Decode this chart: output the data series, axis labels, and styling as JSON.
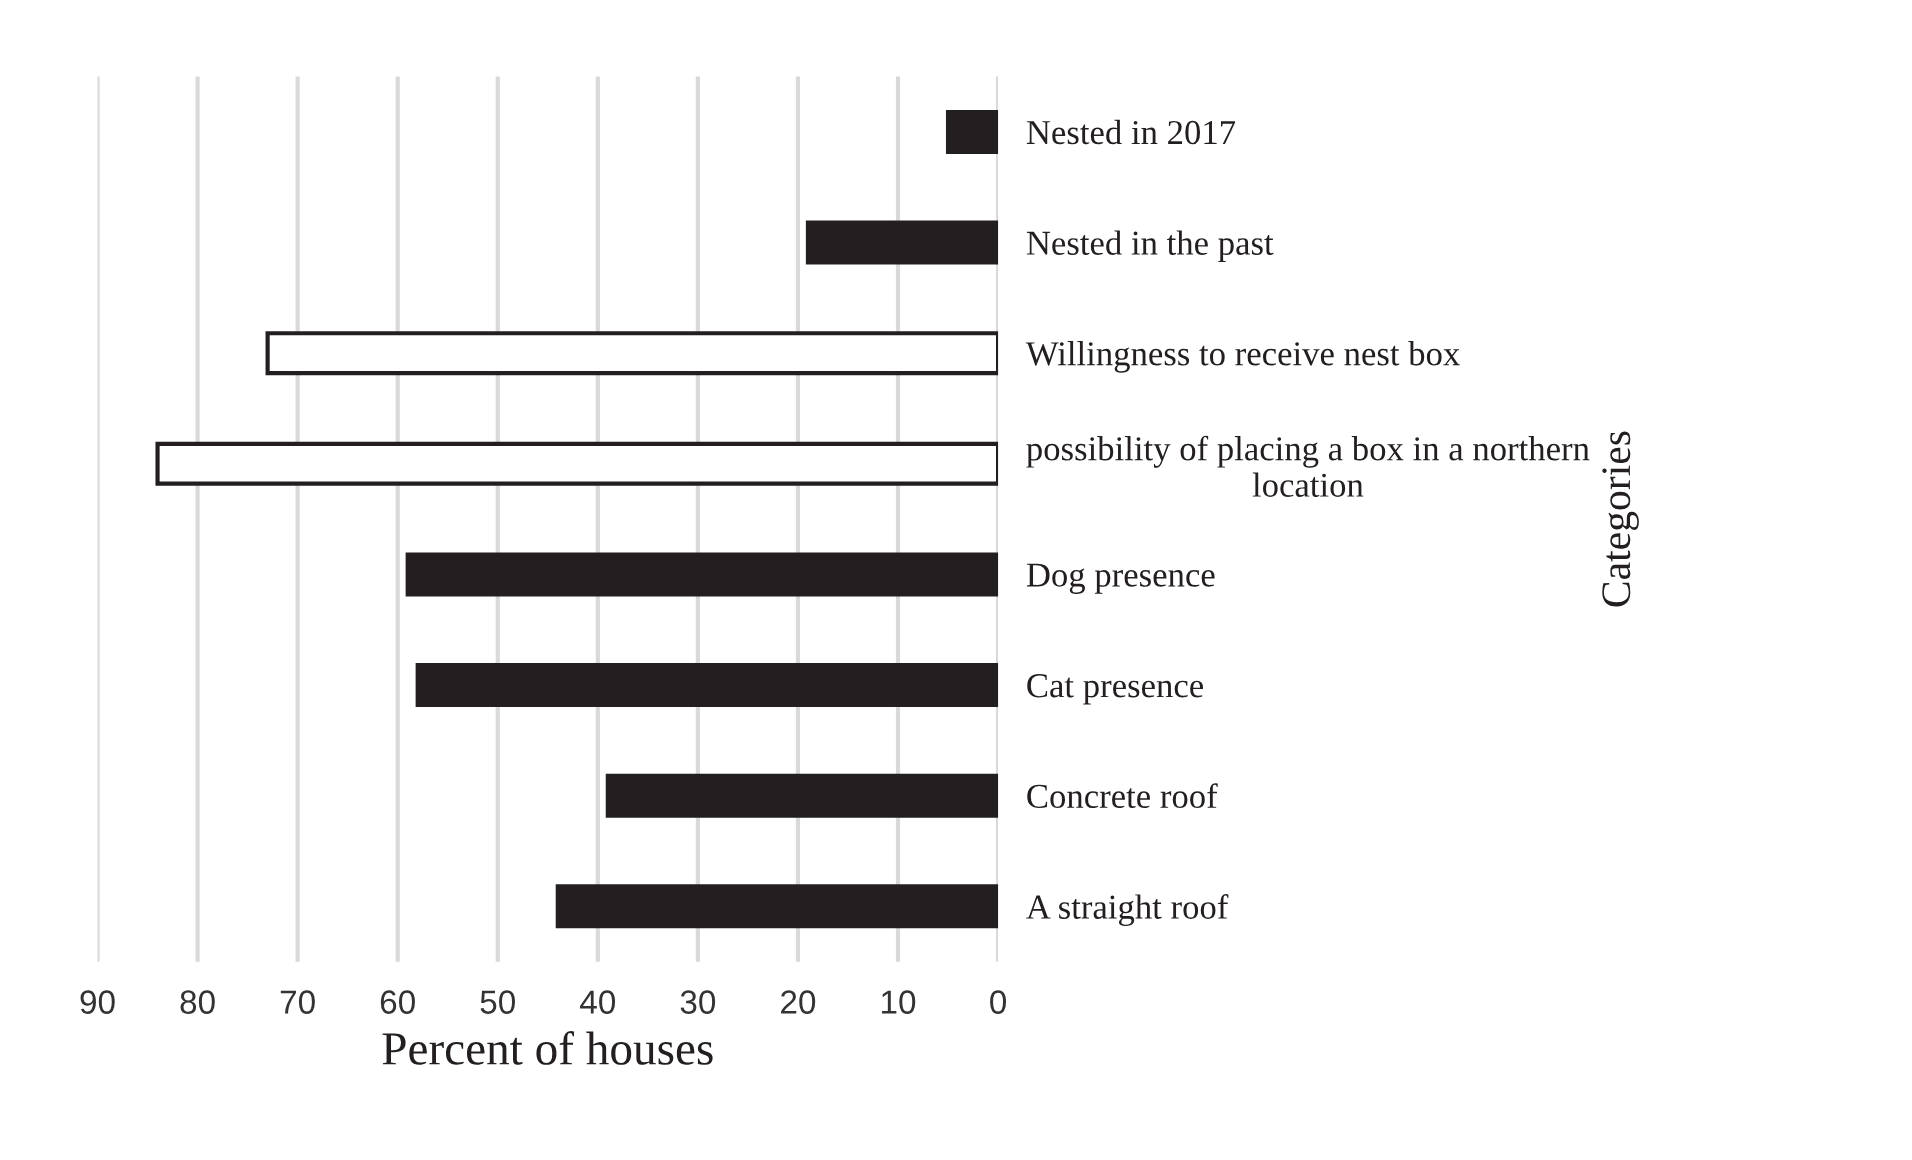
{
  "chart_data": {
    "type": "bar",
    "orientation": "horizontal",
    "xlabel": "Percent of houses",
    "ylabel": "Categories",
    "categories": [
      "Nested in 2017",
      "Nested in the past",
      "Willingness to receive nest box",
      "possibility of placing a box in a northern\nlocation",
      "Dog presence",
      "Cat presence",
      "Concrete roof",
      "A straight roof"
    ],
    "values": [
      5,
      19,
      73,
      84,
      59,
      58,
      39,
      44
    ],
    "colors": [
      "#231f20",
      "#231f20",
      "#ffffff",
      "#ffffff",
      "#231f20",
      "#231f20",
      "#231f20",
      "#231f20"
    ],
    "xlim": [
      90,
      0
    ],
    "xticks": [
      90,
      80,
      70,
      60,
      50,
      40,
      30,
      20,
      10,
      0
    ],
    "grid": "x",
    "legend": false
  }
}
